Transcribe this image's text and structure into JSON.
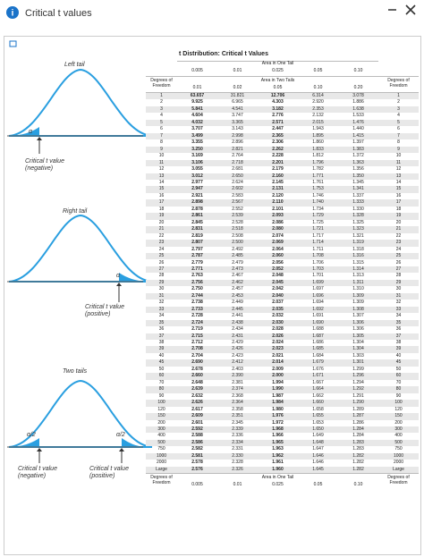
{
  "window": {
    "title": "Critical t values"
  },
  "diagrams": {
    "left": {
      "title": "Left tail",
      "alpha": "α",
      "critical": "Critical t value",
      "sign": "(negative)"
    },
    "right": {
      "title": "Right tail",
      "alpha": "α",
      "critical": "Critical t value",
      "sign": "(positive)"
    },
    "two": {
      "title": "Two tails",
      "alpha_left": "α/2",
      "alpha_right": "α/2",
      "critical_left": "Critical t value",
      "sign_left": "(negative)",
      "critical_right": "Critical t value",
      "sign_right": "(positive)"
    }
  },
  "table": {
    "title": "t Distribution: Critical t Values",
    "one_tail_label": "Area in One Tail",
    "two_tail_label": "Area in Two Tails",
    "df_label": "Degrees of Freedom",
    "one_tail": [
      "0.005",
      "0.01",
      "0.025",
      "0.05",
      "0.10"
    ],
    "two_tail": [
      "0.01",
      "0.02",
      "0.05",
      "0.10",
      "0.20"
    ],
    "rows": [
      [
        "1",
        "63.657",
        "31.821",
        "12.706",
        "6.314",
        "3.078"
      ],
      [
        "2",
        "9.925",
        "6.965",
        "4.303",
        "2.920",
        "1.886"
      ],
      [
        "3",
        "5.841",
        "4.541",
        "3.182",
        "2.353",
        "1.638"
      ],
      [
        "4",
        "4.604",
        "3.747",
        "2.776",
        "2.132",
        "1.533"
      ],
      [
        "5",
        "4.032",
        "3.365",
        "2.571",
        "2.015",
        "1.476"
      ],
      [
        "6",
        "3.707",
        "3.143",
        "2.447",
        "1.943",
        "1.440"
      ],
      [
        "7",
        "3.499",
        "2.998",
        "2.365",
        "1.895",
        "1.415"
      ],
      [
        "8",
        "3.355",
        "2.896",
        "2.306",
        "1.860",
        "1.397"
      ],
      [
        "9",
        "3.250",
        "2.821",
        "2.262",
        "1.833",
        "1.383"
      ],
      [
        "10",
        "3.169",
        "2.764",
        "2.228",
        "1.812",
        "1.372"
      ],
      [
        "11",
        "3.106",
        "2.718",
        "2.201",
        "1.796",
        "1.363"
      ],
      [
        "12",
        "3.055",
        "2.681",
        "2.179",
        "1.782",
        "1.356"
      ],
      [
        "13",
        "3.012",
        "2.650",
        "2.160",
        "1.771",
        "1.350"
      ],
      [
        "14",
        "2.977",
        "2.624",
        "2.145",
        "1.761",
        "1.345"
      ],
      [
        "15",
        "2.947",
        "2.602",
        "2.131",
        "1.753",
        "1.341"
      ],
      [
        "16",
        "2.921",
        "2.583",
        "2.120",
        "1.746",
        "1.337"
      ],
      [
        "17",
        "2.898",
        "2.567",
        "2.110",
        "1.740",
        "1.333"
      ],
      [
        "18",
        "2.878",
        "2.552",
        "2.101",
        "1.734",
        "1.330"
      ],
      [
        "19",
        "2.861",
        "2.539",
        "2.093",
        "1.729",
        "1.328"
      ],
      [
        "20",
        "2.845",
        "2.528",
        "2.086",
        "1.725",
        "1.325"
      ],
      [
        "21",
        "2.831",
        "2.518",
        "2.080",
        "1.721",
        "1.323"
      ],
      [
        "22",
        "2.819",
        "2.508",
        "2.074",
        "1.717",
        "1.321"
      ],
      [
        "23",
        "2.807",
        "2.500",
        "2.069",
        "1.714",
        "1.319"
      ],
      [
        "24",
        "2.797",
        "2.492",
        "2.064",
        "1.711",
        "1.318"
      ],
      [
        "25",
        "2.787",
        "2.485",
        "2.060",
        "1.708",
        "1.316"
      ],
      [
        "26",
        "2.779",
        "2.479",
        "2.056",
        "1.706",
        "1.315"
      ],
      [
        "27",
        "2.771",
        "2.473",
        "2.052",
        "1.703",
        "1.314"
      ],
      [
        "28",
        "2.763",
        "2.467",
        "2.048",
        "1.701",
        "1.313"
      ],
      [
        "29",
        "2.756",
        "2.462",
        "2.045",
        "1.699",
        "1.311"
      ],
      [
        "30",
        "2.750",
        "2.457",
        "2.042",
        "1.697",
        "1.310"
      ],
      [
        "31",
        "2.744",
        "2.453",
        "2.040",
        "1.696",
        "1.309"
      ],
      [
        "32",
        "2.738",
        "2.449",
        "2.037",
        "1.694",
        "1.309"
      ],
      [
        "33",
        "2.733",
        "2.445",
        "2.035",
        "1.692",
        "1.308"
      ],
      [
        "34",
        "2.728",
        "2.441",
        "2.032",
        "1.691",
        "1.307"
      ],
      [
        "35",
        "2.724",
        "2.438",
        "2.030",
        "1.690",
        "1.306"
      ],
      [
        "36",
        "2.719",
        "2.434",
        "2.028",
        "1.688",
        "1.306"
      ],
      [
        "37",
        "2.715",
        "2.431",
        "2.026",
        "1.687",
        "1.305"
      ],
      [
        "38",
        "2.712",
        "2.429",
        "2.024",
        "1.686",
        "1.304"
      ],
      [
        "39",
        "2.708",
        "2.426",
        "2.023",
        "1.685",
        "1.304"
      ],
      [
        "40",
        "2.704",
        "2.423",
        "2.021",
        "1.684",
        "1.303"
      ],
      [
        "45",
        "2.690",
        "2.412",
        "2.014",
        "1.679",
        "1.301"
      ],
      [
        "50",
        "2.678",
        "2.403",
        "2.009",
        "1.676",
        "1.299"
      ],
      [
        "60",
        "2.660",
        "2.390",
        "2.000",
        "1.671",
        "1.296"
      ],
      [
        "70",
        "2.648",
        "2.381",
        "1.994",
        "1.667",
        "1.294"
      ],
      [
        "80",
        "2.639",
        "2.374",
        "1.990",
        "1.664",
        "1.292"
      ],
      [
        "90",
        "2.632",
        "2.368",
        "1.987",
        "1.662",
        "1.291"
      ],
      [
        "100",
        "2.626",
        "2.364",
        "1.984",
        "1.660",
        "1.290"
      ],
      [
        "120",
        "2.617",
        "2.358",
        "1.980",
        "1.658",
        "1.289"
      ],
      [
        "150",
        "2.609",
        "2.351",
        "1.976",
        "1.655",
        "1.287"
      ],
      [
        "200",
        "2.601",
        "2.345",
        "1.972",
        "1.653",
        "1.286"
      ],
      [
        "300",
        "2.592",
        "2.339",
        "1.968",
        "1.650",
        "1.284"
      ],
      [
        "400",
        "2.588",
        "2.336",
        "1.966",
        "1.649",
        "1.284"
      ],
      [
        "500",
        "2.586",
        "2.334",
        "1.965",
        "1.648",
        "1.283"
      ],
      [
        "750",
        "2.582",
        "2.331",
        "1.963",
        "1.647",
        "1.283"
      ],
      [
        "1000",
        "2.581",
        "2.330",
        "1.962",
        "1.646",
        "1.282"
      ],
      [
        "2000",
        "2.578",
        "2.328",
        "1.961",
        "1.646",
        "1.282"
      ],
      [
        "Large",
        "2.576",
        "2.326",
        "1.960",
        "1.645",
        "1.282"
      ]
    ]
  }
}
